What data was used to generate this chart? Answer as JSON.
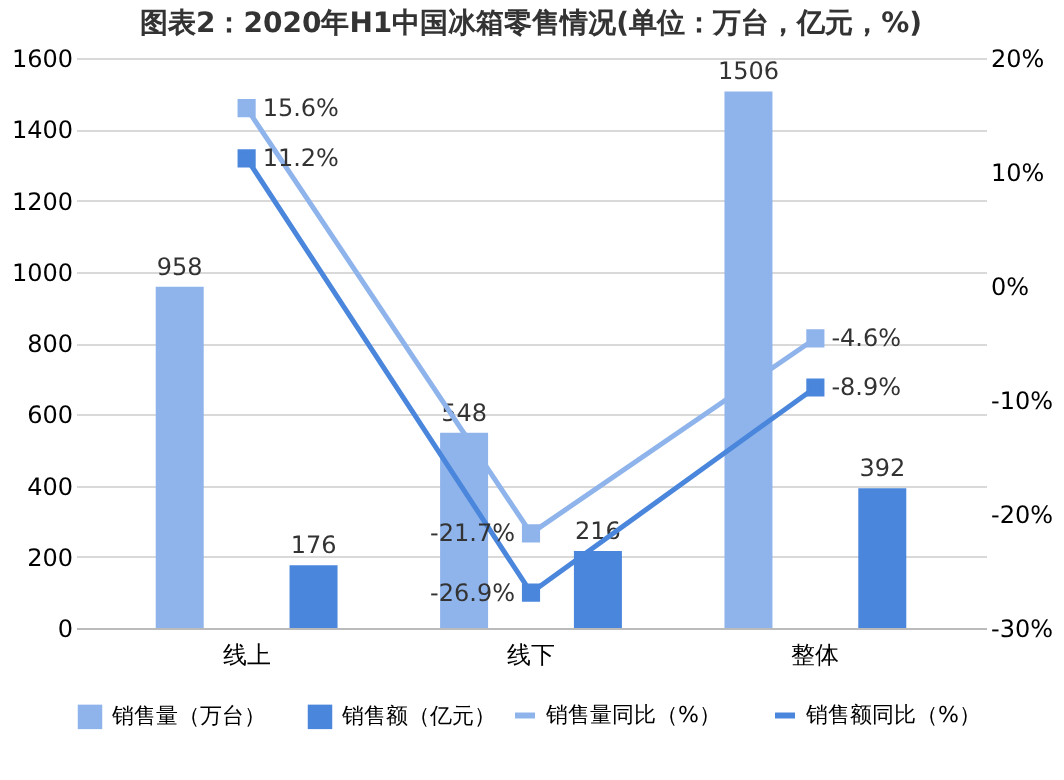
{
  "chart_data": {
    "type": "bar",
    "title": "图表2：2020年H1中国冰箱零售情况(单位：万台，亿元，%)",
    "categories": [
      "线上",
      "线下",
      "整体"
    ],
    "series": [
      {
        "name": "销售量（万台）",
        "color": "#8fb4ec",
        "values": [
          958,
          548,
          1506
        ]
      },
      {
        "name": "销售额（亿元）",
        "color": "#4a86db",
        "values": [
          176,
          216,
          392
        ]
      },
      {
        "name": "销售量同比（%）",
        "type": "line",
        "axis": "y2",
        "color": "#8fb4ec",
        "values": [
          15.6,
          -21.7,
          -4.6
        ],
        "value_labels": [
          "15.6%",
          "-21.7%",
          "-4.6%"
        ]
      },
      {
        "name": "销售额同比（%）",
        "type": "line",
        "axis": "y2",
        "color": "#4a86db",
        "values": [
          11.2,
          -26.9,
          -8.9
        ],
        "value_labels": [
          "11.2%",
          "-26.9%",
          "-8.9%"
        ]
      }
    ],
    "ylim": [
      0,
      1600
    ],
    "yticks": [
      0,
      200,
      400,
      600,
      800,
      1000,
      1200,
      1400,
      1600
    ],
    "y2lim": [
      -30,
      20
    ],
    "y2ticks": [
      {
        "value": -30,
        "label": "-30%"
      },
      {
        "value": -20,
        "label": "-20%"
      },
      {
        "value": -10,
        "label": "-10%"
      },
      {
        "value": 0,
        "label": "0%"
      },
      {
        "value": 10,
        "label": "10%"
      },
      {
        "value": 20,
        "label": "20%"
      }
    ],
    "data_labels": true,
    "grid": "y",
    "legend": "bottom",
    "marker": "square",
    "line_style": "solid"
  }
}
